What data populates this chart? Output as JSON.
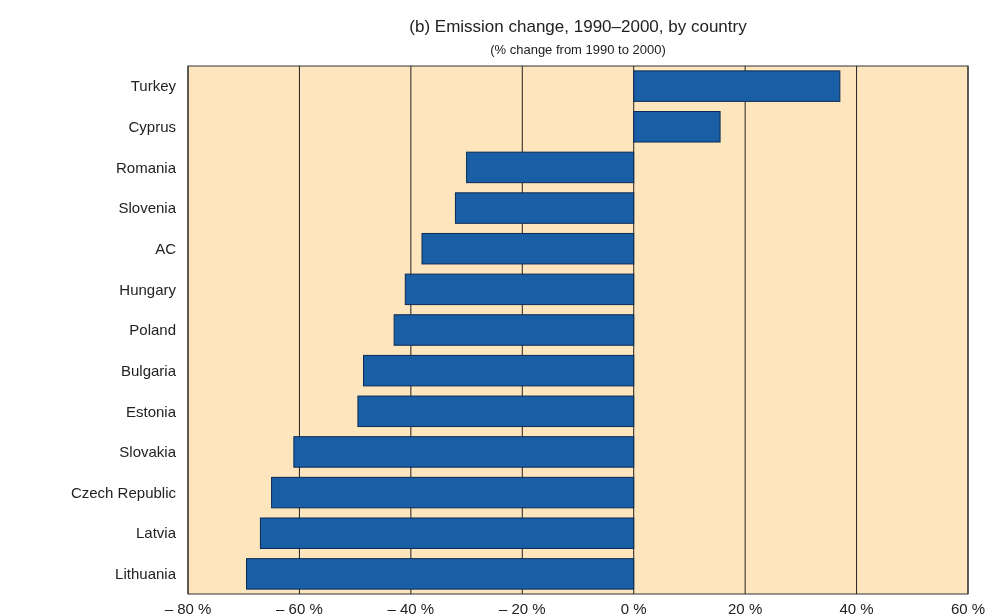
{
  "chart_data": {
    "type": "bar",
    "orientation": "horizontal",
    "title": "(b) Emission change, 1990–2000, by country",
    "subtitle": "(% change from 1990 to 2000)",
    "categories": [
      "Turkey",
      "Cyprus",
      "Romania",
      "Slovenia",
      "AC",
      "Hungary",
      "Poland",
      "Bulgaria",
      "Estonia",
      "Slovakia",
      "Czech Republic",
      "Latvia",
      "Lithuania"
    ],
    "values": [
      37,
      15.5,
      -30,
      -32,
      -38,
      -41,
      -43,
      -48.5,
      -49.5,
      -61,
      -65,
      -67,
      -69.5
    ],
    "color": "#1a5fa6",
    "xlim": [
      -80,
      60
    ],
    "xticks": [
      {
        "value": -80,
        "label": "– 80 %"
      },
      {
        "value": -60,
        "label": "– 60 %"
      },
      {
        "value": -40,
        "label": "– 40 %"
      },
      {
        "value": -20,
        "label": "– 20 %"
      },
      {
        "value": 0,
        "label": "0 %"
      },
      {
        "value": 20,
        "label": "20 %"
      },
      {
        "value": 40,
        "label": "40 %"
      },
      {
        "value": 60,
        "label": "60 %"
      }
    ],
    "grid": "x"
  }
}
